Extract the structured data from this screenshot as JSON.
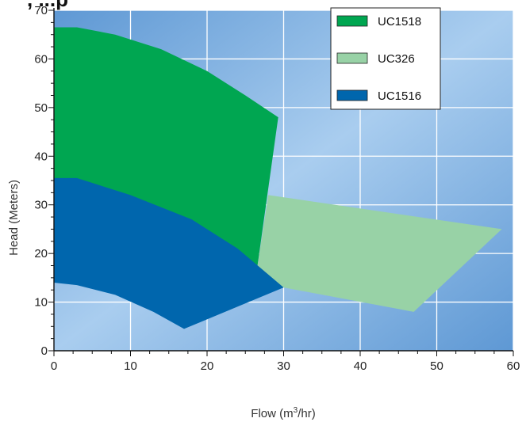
{
  "chart_data": {
    "type": "area",
    "title": "",
    "title_fragment": ", ...p",
    "xlabel": "Flow (m",
    "xlabel_sup": "3",
    "xlabel_suffix": "/hr)",
    "ylabel": "Head (Meters)",
    "xlim": [
      0,
      60
    ],
    "ylim": [
      0,
      70
    ],
    "x_ticks": [
      0,
      10,
      20,
      30,
      40,
      50,
      60
    ],
    "y_ticks": [
      0,
      10,
      20,
      30,
      40,
      50,
      60,
      70
    ],
    "grid": true,
    "legend_position": "top-right",
    "series": [
      {
        "name": "UC1518",
        "color": "#00a651",
        "points": [
          [
            0,
            66.5
          ],
          [
            3,
            66.5
          ],
          [
            8,
            65
          ],
          [
            14,
            62
          ],
          [
            20,
            57.5
          ],
          [
            25,
            52.5
          ],
          [
            29.3,
            48
          ],
          [
            26.5,
            16.5
          ],
          [
            22,
            19.5
          ],
          [
            18,
            23
          ],
          [
            12,
            28
          ],
          [
            6,
            33
          ],
          [
            0,
            35.5
          ]
        ]
      },
      {
        "name": "UC326",
        "color": "#98d2a6",
        "points": [
          [
            28,
            32
          ],
          [
            58.5,
            25
          ],
          [
            47,
            8
          ],
          [
            30,
            13
          ],
          [
            26.5,
            16.5
          ]
        ]
      },
      {
        "name": "UC1516",
        "color": "#0066ad",
        "points": [
          [
            0,
            35.5
          ],
          [
            3,
            35.5
          ],
          [
            10,
            32
          ],
          [
            18,
            27
          ],
          [
            24,
            21
          ],
          [
            30,
            13
          ],
          [
            17,
            4.5
          ],
          [
            13,
            8
          ],
          [
            8,
            11.5
          ],
          [
            3,
            13.5
          ],
          [
            0,
            14
          ]
        ]
      }
    ]
  }
}
